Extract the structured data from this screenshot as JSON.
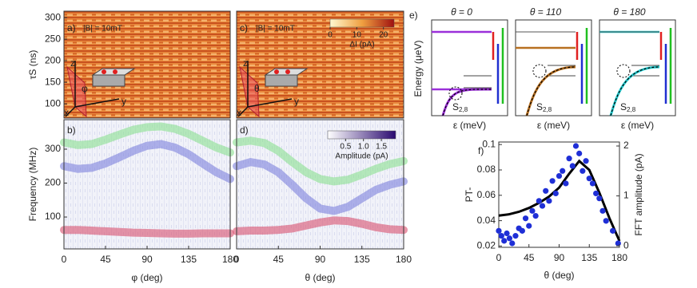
{
  "chart_data": [
    {
      "type": "heatmap",
      "panel": "a)",
      "annotation": "|B| = 10mT",
      "ylabel": "τS (ns)",
      "ylim": [
        67,
        315
      ],
      "yticks": [
        100,
        150,
        200,
        250,
        300
      ],
      "xlim": [
        0,
        180
      ],
      "inset_labels": [
        "z",
        "y",
        "x",
        "φ"
      ]
    },
    {
      "type": "bands",
      "panel": "b)",
      "ylabel": "Frequency (MHz)",
      "xlabel": "φ (deg)",
      "xlim": [
        0,
        180
      ],
      "xticks": [
        0,
        45,
        90,
        135,
        180
      ],
      "ylim": [
        6,
        387
      ],
      "yticks": [
        100,
        200,
        300
      ],
      "x": [
        0,
        15,
        30,
        45,
        60,
        75,
        90,
        105,
        120,
        135,
        150,
        165,
        180
      ],
      "series": [
        {
          "color": "#8be08f",
          "values": [
            320,
            312,
            315,
            328,
            343,
            357,
            365,
            367,
            360,
            345,
            325,
            305,
            290
          ]
        },
        {
          "color": "#7d80dc",
          "values": [
            250,
            242,
            245,
            258,
            276,
            295,
            310,
            315,
            305,
            285,
            258,
            232,
            212
          ]
        },
        {
          "color": "#d9506e",
          "values": [
            62,
            62,
            60,
            58,
            56,
            54,
            53,
            52,
            51,
            51,
            52,
            52,
            52
          ]
        }
      ]
    },
    {
      "type": "heatmap",
      "panel": "c)",
      "annotation": "|B| = 10mT",
      "xlim": [
        0,
        180
      ],
      "ylim": [
        67,
        315
      ],
      "inset_labels": [
        "z",
        "y",
        "x",
        "θ"
      ],
      "colorbar": {
        "lim": [
          0,
          24
        ],
        "ticks": [
          0,
          10,
          20
        ],
        "label": "ΔI (pA)"
      }
    },
    {
      "type": "bands",
      "panel": "d)",
      "xlabel": "θ (deg)",
      "xlim": [
        0,
        180
      ],
      "xticks": [
        0,
        45,
        90,
        135,
        180
      ],
      "ylim": [
        6,
        387
      ],
      "colorbar": {
        "lim": [
          0,
          1.9
        ],
        "ticks": [
          0.5,
          {
            "value": 1,
            "label": "1.0"
          },
          1.5
        ],
        "label": "Amplitude (pA)"
      },
      "x": [
        0,
        15,
        30,
        45,
        60,
        75,
        90,
        105,
        120,
        135,
        150,
        165,
        180
      ],
      "series": [
        {
          "color": "#8be08f",
          "values": [
            320,
            325,
            318,
            295,
            262,
            232,
            212,
            205,
            210,
            225,
            242,
            256,
            265
          ]
        },
        {
          "color": "#7d80dc",
          "values": [
            250,
            262,
            255,
            232,
            195,
            155,
            125,
            118,
            130,
            155,
            180,
            195,
            205
          ]
        },
        {
          "color": "#d9506e",
          "values": [
            58,
            60,
            60,
            62,
            66,
            75,
            84,
            90,
            88,
            80,
            70,
            64,
            62
          ]
        }
      ]
    },
    {
      "type": "diagram",
      "panel": "e)",
      "ylabel": "Energy (μeV)",
      "xlabel": "ε (meV)",
      "state_label": "S",
      "state_sub": "2,8",
      "titles": [
        "θ = 0",
        "θ = 110",
        "θ = 180"
      ],
      "colors": [
        "#9b30d9",
        "#b87020",
        "#22c8cc"
      ]
    },
    {
      "type": "scatter",
      "panel": "f)",
      "ylabel": "PT-",
      "y2label": "FFT amplitude (pA)",
      "xlabel": "θ (deg)",
      "xlim": [
        0,
        180
      ],
      "xticks": [
        0,
        45,
        90,
        135,
        180
      ],
      "ylim": [
        0.019,
        0.102
      ],
      "yticks": [
        0.02,
        0.04,
        0.06,
        0.08,
        0.1
      ],
      "y2lim": [
        -0.03,
        2.08
      ],
      "y2ticks": [
        0,
        1,
        2
      ],
      "series": [
        {
          "type": "line",
          "color": "#000000",
          "x": [
            0,
            15,
            30,
            45,
            60,
            75,
            90,
            105,
            120,
            135,
            150,
            165,
            180
          ],
          "values": [
            0.044,
            0.045,
            0.047,
            0.05,
            0.054,
            0.059,
            0.066,
            0.077,
            0.087,
            0.08,
            0.062,
            0.042,
            0.024
          ]
        },
        {
          "type": "scatter",
          "axis": "y2",
          "color": "#1f2fd6",
          "x": [
            0,
            4,
            8,
            12,
            16,
            20,
            25,
            30,
            35,
            40,
            45,
            50,
            55,
            60,
            65,
            70,
            75,
            80,
            85,
            90,
            95,
            100,
            105,
            110,
            115,
            120,
            125,
            130,
            135,
            140,
            145,
            150,
            155,
            160,
            170,
            178
          ],
          "values": [
            0.3,
            0.2,
            0.1,
            0.25,
            0.15,
            0.05,
            0.2,
            0.35,
            0.3,
            0.55,
            0.4,
            0.7,
            0.6,
            0.9,
            0.8,
            1.1,
            0.9,
            1.3,
            1.05,
            1.4,
            1.5,
            1.25,
            1.75,
            1.6,
            2.0,
            1.85,
            1.5,
            1.7,
            1.35,
            1.25,
            1.05,
            0.95,
            0.7,
            0.5,
            0.3,
            0.05
          ]
        }
      ]
    }
  ]
}
